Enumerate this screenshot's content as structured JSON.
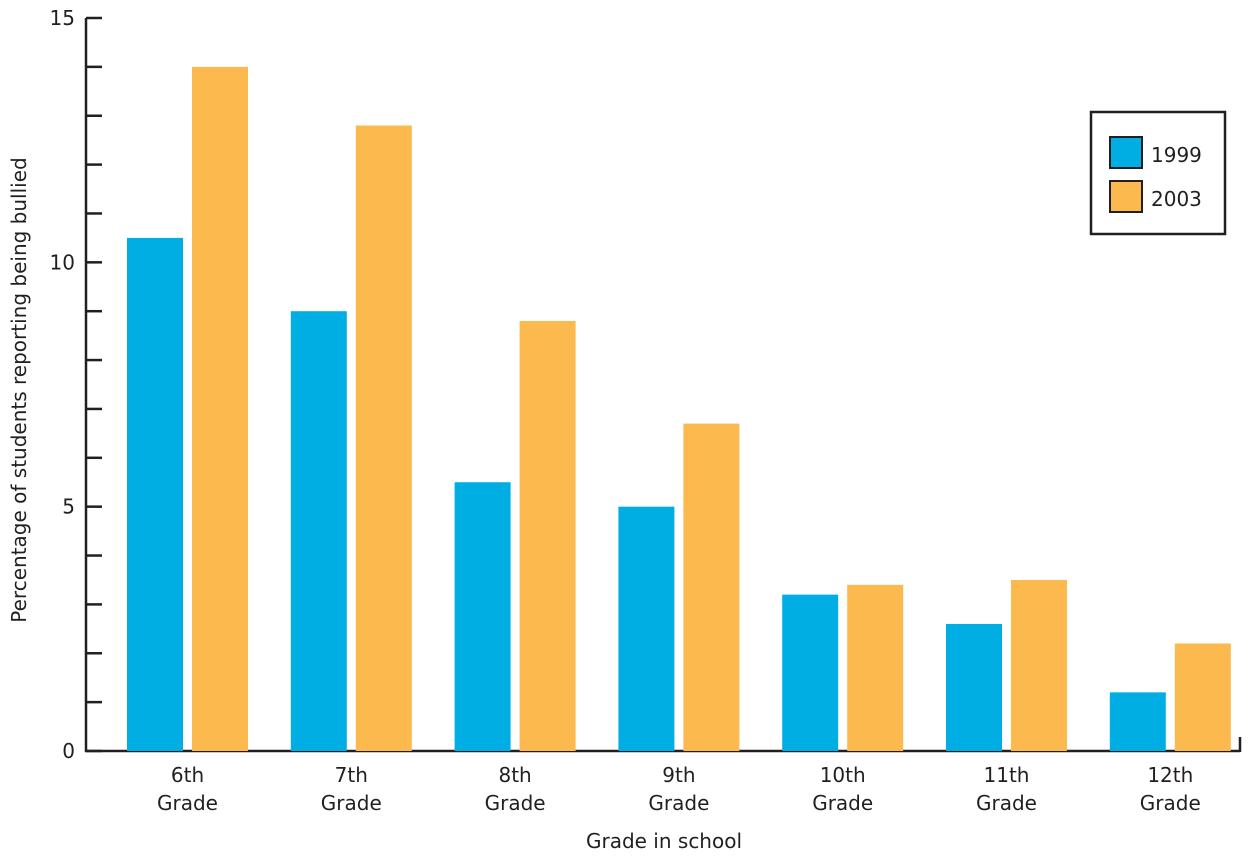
{
  "chart_data": {
    "type": "bar",
    "categories": [
      [
        "6th",
        "Grade"
      ],
      [
        "7th",
        "Grade"
      ],
      [
        "8th",
        "Grade"
      ],
      [
        "9th",
        "Grade"
      ],
      [
        "10th",
        "Grade"
      ],
      [
        "11th",
        "Grade"
      ],
      [
        "12th",
        "Grade"
      ]
    ],
    "series": [
      {
        "name": "1999",
        "color": "#00aee3",
        "values": [
          10.5,
          9.0,
          5.5,
          5.0,
          3.2,
          2.6,
          1.2
        ]
      },
      {
        "name": "2003",
        "color": "#fbb94e",
        "values": [
          14.0,
          12.8,
          8.8,
          6.7,
          3.4,
          3.5,
          2.2
        ]
      }
    ],
    "xlabel": "Grade in school",
    "ylabel": "Percentage of students reporting being bullied",
    "ylim": [
      0,
      15
    ],
    "major_ticks": [
      0,
      5,
      10,
      15
    ],
    "minor_ticks": [
      1,
      2,
      3,
      4,
      6,
      7,
      8,
      9,
      11,
      12,
      13,
      14
    ],
    "grid": false,
    "legend_position": "top-right"
  }
}
